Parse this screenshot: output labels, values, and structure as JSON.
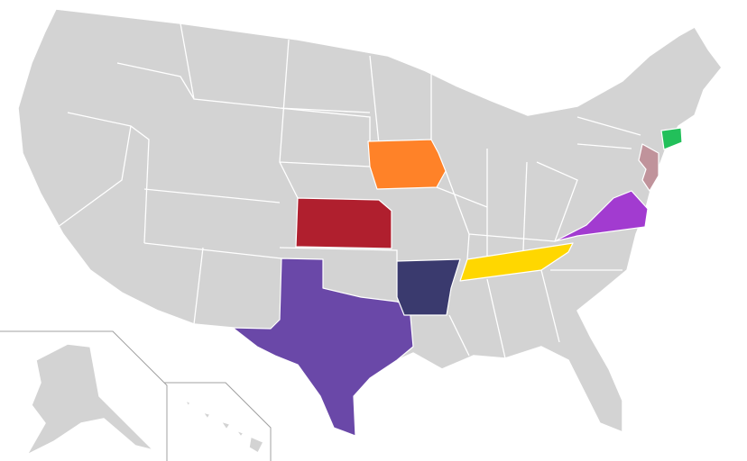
{
  "map": {
    "base_color": "#d3d3d3",
    "highlighted_states": [
      {
        "state": "Iowa",
        "color": "#ff8228"
      },
      {
        "state": "Kansas",
        "color": "#b01f2e"
      },
      {
        "state": "Texas",
        "color": "#6a48a8"
      },
      {
        "state": "Arkansas",
        "color": "#3a3a6e"
      },
      {
        "state": "Tennessee",
        "color": "#ffd700"
      },
      {
        "state": "Virginia",
        "color": "#a23bd0"
      },
      {
        "state": "New Jersey",
        "color": "#c0939b"
      },
      {
        "state": "Connecticut",
        "color": "#22c05a"
      }
    ]
  }
}
